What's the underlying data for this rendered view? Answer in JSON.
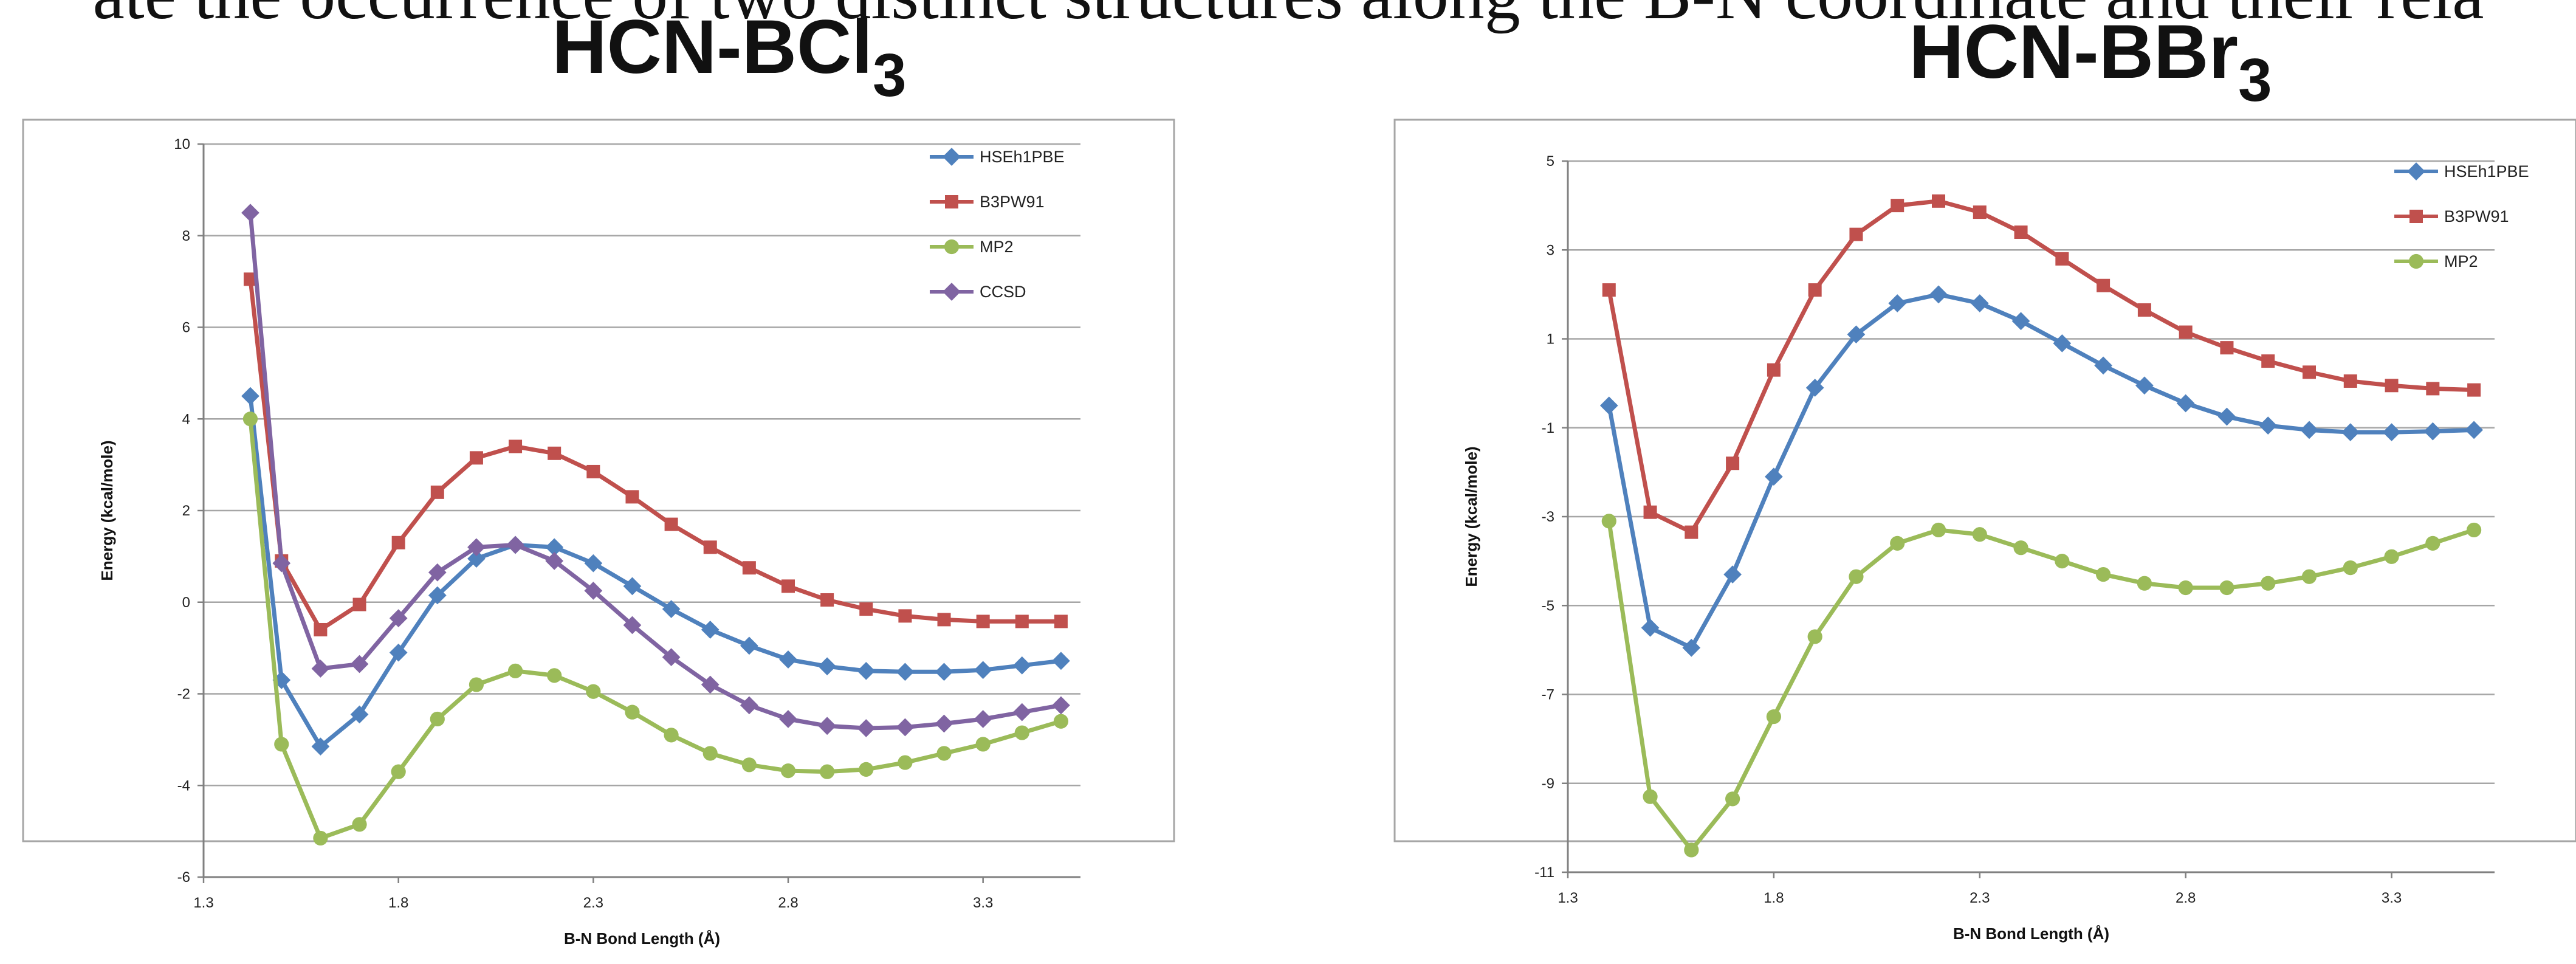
{
  "header_text": "ate the occurrence of two distinct structures along the B-N coordinate and their rela",
  "chart_data": [
    {
      "type": "line",
      "title_main": "HCN-BCl",
      "title_sub": "3",
      "xlabel": "B-N Bond Length (Å)",
      "ylabel": "Energy (kcal/mole)",
      "xlim": [
        1.3,
        3.55
      ],
      "ylim": [
        -6,
        10
      ],
      "xticks": [
        "1.3",
        "1.8",
        "2.3",
        "2.8",
        "3.3"
      ],
      "yticks": [
        "10",
        "8",
        "6",
        "4",
        "2",
        "0",
        "-2",
        "-4",
        "-6"
      ],
      "grid": "horizontal",
      "legend_position": "top-right",
      "x": [
        1.42,
        1.5,
        1.6,
        1.7,
        1.8,
        1.9,
        2.0,
        2.1,
        2.2,
        2.3,
        2.4,
        2.5,
        2.6,
        2.7,
        2.8,
        2.9,
        3.0,
        3.1,
        3.2,
        3.3,
        3.4,
        3.5
      ],
      "series": [
        {
          "name": "HSEh1PBE",
          "color": "#4F81BD",
          "marker": "diamond",
          "values": [
            4.5,
            -1.7,
            -3.15,
            -2.45,
            -1.1,
            0.15,
            0.95,
            1.25,
            1.2,
            0.85,
            0.35,
            -0.15,
            -0.6,
            -0.95,
            -1.25,
            -1.4,
            -1.5,
            -1.52,
            -1.52,
            -1.48,
            -1.38,
            -1.28
          ]
        },
        {
          "name": "B3PW91",
          "color": "#C0504D",
          "marker": "square",
          "values": [
            7.05,
            0.9,
            -0.6,
            -0.05,
            1.3,
            2.4,
            3.15,
            3.4,
            3.25,
            2.85,
            2.3,
            1.7,
            1.2,
            0.75,
            0.35,
            0.05,
            -0.15,
            -0.3,
            -0.38,
            -0.42,
            -0.42,
            -0.42
          ]
        },
        {
          "name": "MP2",
          "color": "#9BBB59",
          "marker": "circle",
          "values": [
            4.0,
            -3.1,
            -5.15,
            -4.85,
            -3.7,
            -2.55,
            -1.8,
            -1.5,
            -1.6,
            -1.95,
            -2.4,
            -2.9,
            -3.3,
            -3.55,
            -3.68,
            -3.7,
            -3.65,
            -3.5,
            -3.3,
            -3.1,
            -2.85,
            -2.6
          ]
        },
        {
          "name": "CCSD",
          "color": "#8064A2",
          "marker": "diamond",
          "values": [
            8.5,
            0.85,
            -1.45,
            -1.35,
            -0.35,
            0.65,
            1.2,
            1.25,
            0.9,
            0.25,
            -0.5,
            -1.2,
            -1.8,
            -2.25,
            -2.55,
            -2.7,
            -2.75,
            -2.73,
            -2.65,
            -2.55,
            -2.4,
            -2.25
          ]
        }
      ]
    },
    {
      "type": "line",
      "title_main": "HCN-BBr",
      "title_sub": "3",
      "xlabel": "B-N Bond Length (Å)",
      "ylabel": "Energy (kcal/mole)",
      "xlim": [
        1.3,
        3.55
      ],
      "ylim": [
        -11,
        5
      ],
      "xticks": [
        "1.3",
        "1.8",
        "2.3",
        "2.8",
        "3.3"
      ],
      "yticks": [
        "5",
        "3",
        "1",
        "-1",
        "-3",
        "-5",
        "-7",
        "-9",
        "-11"
      ],
      "grid": "horizontal",
      "legend_position": "top-right",
      "x": [
        1.4,
        1.5,
        1.6,
        1.7,
        1.8,
        1.9,
        2.0,
        2.1,
        2.2,
        2.3,
        2.4,
        2.5,
        2.6,
        2.7,
        2.8,
        2.9,
        3.0,
        3.1,
        3.2,
        3.3,
        3.4,
        3.5
      ],
      "series": [
        {
          "name": "HSEh1PBE",
          "color": "#4F81BD",
          "marker": "diamond",
          "values": [
            -0.5,
            -5.5,
            -5.95,
            -4.3,
            -2.1,
            -0.1,
            1.1,
            1.8,
            2.0,
            1.8,
            1.4,
            0.9,
            0.4,
            -0.05,
            -0.45,
            -0.75,
            -0.95,
            -1.05,
            -1.1,
            -1.1,
            -1.08,
            -1.05
          ]
        },
        {
          "name": "B3PW91",
          "color": "#C0504D",
          "marker": "square",
          "values": [
            2.1,
            -2.9,
            -3.35,
            -1.8,
            0.3,
            2.1,
            3.35,
            4.0,
            4.1,
            3.85,
            3.4,
            2.8,
            2.2,
            1.65,
            1.15,
            0.8,
            0.5,
            0.25,
            0.05,
            -0.05,
            -0.12,
            -0.15
          ]
        },
        {
          "name": "MP2",
          "color": "#9BBB59",
          "marker": "circle",
          "values": [
            -3.1,
            -9.3,
            -10.5,
            -9.35,
            -7.5,
            -5.7,
            -4.35,
            -3.6,
            -3.3,
            -3.4,
            -3.7,
            -4.0,
            -4.3,
            -4.5,
            -4.6,
            -4.6,
            -4.5,
            -4.35,
            -4.15,
            -3.9,
            -3.6,
            -3.3
          ]
        }
      ]
    }
  ]
}
